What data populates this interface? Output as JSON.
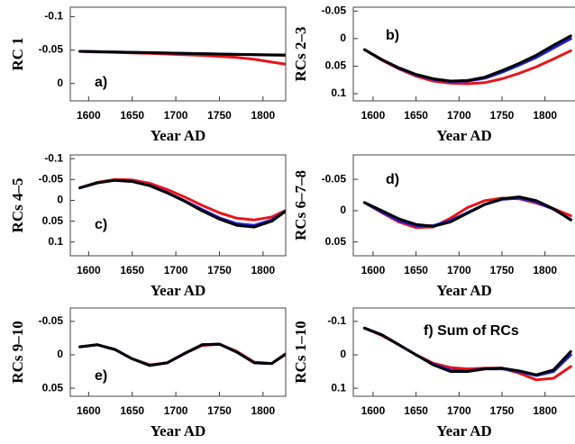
{
  "chart_data": [
    {
      "type": "line",
      "annotation": "a)",
      "ylabel": "RC 1",
      "xlabel": "Year AD",
      "x": [
        1590,
        1610,
        1630,
        1650,
        1670,
        1690,
        1710,
        1730,
        1750,
        1770,
        1790,
        1810,
        1830
      ],
      "xlim": [
        1579,
        1826
      ],
      "xticks": [
        1600,
        1650,
        1700,
        1750,
        1800
      ],
      "ylim": [
        0.026,
        -0.114
      ],
      "yticks": [
        -0.1,
        -0.05,
        0
      ],
      "series": [
        {
          "color": "#e8141c",
          "values": [
            -0.048,
            -0.047,
            -0.0465,
            -0.0457,
            -0.045,
            -0.044,
            -0.043,
            -0.042,
            -0.0405,
            -0.039,
            -0.036,
            -0.032,
            -0.028
          ]
        },
        {
          "color": "#1f1fd6",
          "values": [
            -0.048,
            -0.0475,
            -0.047,
            -0.0465,
            -0.046,
            -0.0455,
            -0.045,
            -0.0445,
            -0.044,
            -0.0435,
            -0.0432,
            -0.0428,
            -0.0425
          ]
        },
        {
          "color": "#000000",
          "values": [
            -0.048,
            -0.0475,
            -0.047,
            -0.0465,
            -0.046,
            -0.0455,
            -0.045,
            -0.0445,
            -0.044,
            -0.0435,
            -0.043,
            -0.0425,
            -0.042
          ]
        }
      ]
    },
    {
      "type": "line",
      "annotation": "b)",
      "ylabel": "RCs 2–3",
      "xlabel": "Year AD",
      "x": [
        1590,
        1610,
        1630,
        1650,
        1670,
        1690,
        1710,
        1730,
        1750,
        1770,
        1790,
        1810,
        1830
      ],
      "xlim": [
        1577,
        1837
      ],
      "xticks": [
        1600,
        1650,
        1700,
        1750,
        1800
      ],
      "ylim": [
        0.113,
        -0.057
      ],
      "yticks": [
        -0.05,
        0,
        0.05,
        0.1
      ],
      "series": [
        {
          "color": "#e8141c",
          "values": [
            0.02,
            0.039,
            0.055,
            0.068,
            0.077,
            0.081,
            0.082,
            0.08,
            0.073,
            0.063,
            0.051,
            0.037,
            0.022
          ]
        },
        {
          "color": "#1f1fd6",
          "values": [
            0.02,
            0.038,
            0.054,
            0.066,
            0.074,
            0.078,
            0.077,
            0.072,
            0.061,
            0.048,
            0.034,
            0.017,
            0.0
          ]
        },
        {
          "color": "#000000",
          "values": [
            0.02,
            0.038,
            0.053,
            0.065,
            0.073,
            0.077,
            0.076,
            0.07,
            0.058,
            0.045,
            0.03,
            0.012,
            -0.005
          ]
        }
      ]
    },
    {
      "type": "line",
      "annotation": "c)",
      "ylabel": "RCs 4–5",
      "xlabel": "Year AD",
      "x": [
        1590,
        1610,
        1630,
        1650,
        1670,
        1690,
        1710,
        1730,
        1750,
        1770,
        1790,
        1810,
        1830
      ],
      "xlim": [
        1579,
        1826
      ],
      "xticks": [
        1600,
        1650,
        1700,
        1750,
        1800
      ],
      "ylim": [
        0.133,
        -0.109
      ],
      "yticks": [
        -0.1,
        -0.05,
        0,
        0.05,
        0.1
      ],
      "series": [
        {
          "color": "#e8141c",
          "values": [
            -0.03,
            -0.043,
            -0.05,
            -0.049,
            -0.041,
            -0.026,
            -0.008,
            0.012,
            0.03,
            0.043,
            0.047,
            0.04,
            0.02
          ]
        },
        {
          "color": "#1f1fd6",
          "values": [
            -0.03,
            -0.042,
            -0.048,
            -0.046,
            -0.036,
            -0.019,
            0.001,
            0.022,
            0.042,
            0.056,
            0.06,
            0.047,
            0.02
          ]
        },
        {
          "color": "#000000",
          "values": [
            -0.03,
            -0.042,
            -0.048,
            -0.045,
            -0.035,
            -0.018,
            0.002,
            0.025,
            0.045,
            0.06,
            0.064,
            0.05,
            0.02
          ]
        }
      ]
    },
    {
      "type": "line",
      "annotation": "d)",
      "ylabel": "RCs 6–7–8",
      "xlabel": "Year AD",
      "x": [
        1590,
        1610,
        1630,
        1650,
        1670,
        1690,
        1710,
        1730,
        1750,
        1770,
        1790,
        1810,
        1830
      ],
      "xlim": [
        1577,
        1837
      ],
      "xticks": [
        1600,
        1650,
        1700,
        1750,
        1800
      ],
      "ylim": [
        0.072,
        -0.089
      ],
      "yticks": [
        -0.05,
        0,
        0.05
      ],
      "series": [
        {
          "color": "#e8141c",
          "values": [
            -0.013,
            0.003,
            0.018,
            0.027,
            0.026,
            0.012,
            -0.005,
            -0.016,
            -0.02,
            -0.019,
            -0.012,
            -0.003,
            0.008
          ]
        },
        {
          "color": "#1f1fd6",
          "values": [
            -0.013,
            0.002,
            0.016,
            0.024,
            0.024,
            0.016,
            0.003,
            -0.01,
            -0.018,
            -0.02,
            -0.014,
            -0.002,
            0.014
          ]
        },
        {
          "color": "#000000",
          "values": [
            -0.013,
            0.0,
            0.013,
            0.022,
            0.025,
            0.018,
            0.004,
            -0.01,
            -0.019,
            -0.022,
            -0.016,
            -0.003,
            0.015
          ]
        }
      ]
    },
    {
      "type": "line",
      "annotation": "e)",
      "ylabel": "RCs 9–10",
      "xlabel": "Year AD",
      "x": [
        1590,
        1610,
        1630,
        1650,
        1670,
        1690,
        1710,
        1730,
        1750,
        1770,
        1790,
        1810,
        1830
      ],
      "xlim": [
        1579,
        1826
      ],
      "xticks": [
        1600,
        1650,
        1700,
        1750,
        1800
      ],
      "ylim": [
        0.062,
        -0.07
      ],
      "yticks": [
        -0.05,
        0,
        0.05
      ],
      "series": [
        {
          "color": "#e8141c",
          "values": [
            -0.012,
            -0.015,
            -0.008,
            0.006,
            0.015,
            0.012,
            -0.002,
            -0.014,
            -0.016,
            -0.005,
            0.011,
            0.013,
            -0.004
          ]
        },
        {
          "color": "#1f1fd6",
          "values": [
            -0.012,
            -0.015,
            -0.008,
            0.006,
            0.016,
            0.012,
            -0.002,
            -0.015,
            -0.016,
            -0.004,
            0.012,
            0.013,
            -0.005
          ]
        },
        {
          "color": "#000000",
          "values": [
            -0.012,
            -0.015,
            -0.008,
            0.006,
            0.016,
            0.012,
            -0.002,
            -0.015,
            -0.016,
            -0.004,
            0.012,
            0.013,
            -0.005
          ]
        }
      ]
    },
    {
      "type": "line",
      "annotation": "f) Sum of RCs",
      "ylabel": "RCs 1–10",
      "xlabel": "Year AD",
      "x": [
        1590,
        1610,
        1630,
        1650,
        1670,
        1690,
        1710,
        1730,
        1750,
        1770,
        1790,
        1810,
        1830
      ],
      "xlim": [
        1577,
        1837
      ],
      "xticks": [
        1600,
        1650,
        1700,
        1750,
        1800
      ],
      "ylim": [
        0.124,
        -0.14
      ],
      "yticks": [
        -0.1,
        0,
        0.1
      ],
      "series": [
        {
          "color": "#e8141c",
          "values": [
            -0.08,
            -0.058,
            -0.03,
            0.0,
            0.025,
            0.038,
            0.042,
            0.04,
            0.04,
            0.055,
            0.075,
            0.07,
            0.035
          ]
        },
        {
          "color": "#1f1fd6",
          "values": [
            -0.08,
            -0.06,
            -0.03,
            0.0,
            0.028,
            0.046,
            0.048,
            0.042,
            0.042,
            0.05,
            0.062,
            0.05,
            0.0
          ]
        },
        {
          "color": "#000000",
          "values": [
            -0.08,
            -0.06,
            -0.03,
            0.0,
            0.03,
            0.05,
            0.05,
            0.042,
            0.04,
            0.048,
            0.06,
            0.045,
            -0.01
          ]
        }
      ]
    }
  ]
}
